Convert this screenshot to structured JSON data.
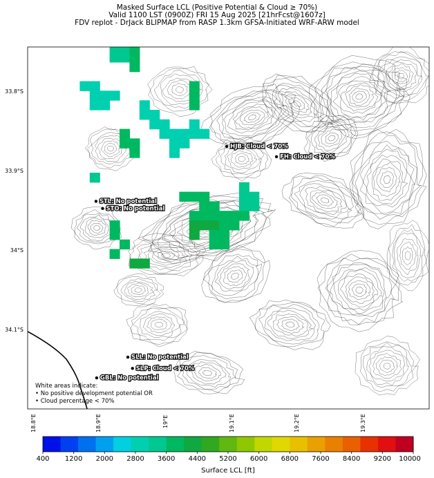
{
  "title": {
    "line1": "Masked Surface LCL (Positive Potential & Cloud ≥ 70%)",
    "line2": "Valid 1100 LST (0900Z) FRI 15 Aug 2025 [21hrFcst@1607z]",
    "line3": "FDV replot - DrJack BLIPMAP from RASP 1.3km GFSA-Initiated WRF-ARW model"
  },
  "lat_labels": [
    "33.8°S",
    "33.9°S",
    "34°S",
    "34.1°S"
  ],
  "lon_labels": [
    "18.8°E",
    "18.9°E",
    "19°E",
    "19.1°E",
    "19.2°E",
    "19.3°E"
  ],
  "stations": [
    {
      "code": "HJB",
      "label": "HJB: Cloud < 70%",
      "lon": 19.08,
      "lat": -33.87
    },
    {
      "code": "FH",
      "label": "FH: Cloud < 70%",
      "lon": 19.155,
      "lat": -33.883
    },
    {
      "code": "STL",
      "label": "STL: No potential",
      "lon": 18.883,
      "lat": -33.939
    },
    {
      "code": "STO",
      "label": "STO: No potential",
      "lon": 18.893,
      "lat": -33.948
    },
    {
      "code": "SLL",
      "label": "SLL: No potential",
      "lon": 18.931,
      "lat": -34.135
    },
    {
      "code": "SLP",
      "label": "SLP: Cloud < 70%",
      "lon": 18.938,
      "lat": -34.149
    },
    {
      "code": "GBL",
      "label": "GBL: No potential",
      "lon": 18.884,
      "lat": -34.161
    }
  ],
  "note": {
    "line1": "White areas indicate:",
    "line2": "• No positive development potential OR",
    "line3": "• Cloud percentage < 70%"
  },
  "colorbar": {
    "title": "Surface LCL [ft]",
    "ticks": [
      "400",
      "1200",
      "2000",
      "2800",
      "3600",
      "4400",
      "5200",
      "6000",
      "6800",
      "7600",
      "8400",
      "9200",
      "10000"
    ],
    "colors": [
      "#0010e8",
      "#0040f0",
      "#0070f0",
      "#00a0f0",
      "#00d0e0",
      "#00d0b0",
      "#00c890",
      "#00b860",
      "#10a840",
      "#30a820",
      "#60b810",
      "#90c800",
      "#c0d800",
      "#e0d800",
      "#e8c000",
      "#eaa000",
      "#ea8000",
      "#ea6000",
      "#e83000",
      "#e01010",
      "#c00020"
    ]
  },
  "lcl_cells": [
    {
      "lon": 18.911,
      "lat": -33.746,
      "lcl": 3200
    },
    {
      "lon": 18.926,
      "lat": -33.746,
      "lcl": 3200
    },
    {
      "lon": 18.941,
      "lat": -33.746,
      "lcl": 3600
    },
    {
      "lon": 18.911,
      "lat": -33.758,
      "lcl": 3200
    },
    {
      "lon": 18.926,
      "lat": -33.758,
      "lcl": 3200
    },
    {
      "lon": 18.941,
      "lat": -33.758,
      "lcl": 3600
    },
    {
      "lon": 18.941,
      "lat": -33.77,
      "lcl": 3600
    },
    {
      "lon": 18.866,
      "lat": -33.794,
      "lcl": 3000
    },
    {
      "lon": 18.881,
      "lat": -33.794,
      "lcl": 3000
    },
    {
      "lon": 18.881,
      "lat": -33.806,
      "lcl": 3000
    },
    {
      "lon": 18.896,
      "lat": -33.806,
      "lcl": 3000
    },
    {
      "lon": 18.881,
      "lat": -33.818,
      "lcl": 3000
    },
    {
      "lon": 18.896,
      "lat": -33.818,
      "lcl": 3000
    },
    {
      "lon": 18.911,
      "lat": -33.806,
      "lcl": 3000
    },
    {
      "lon": 18.956,
      "lat": -33.818,
      "lcl": 3000
    },
    {
      "lon": 18.956,
      "lat": -33.83,
      "lcl": 3000
    },
    {
      "lon": 18.971,
      "lat": -33.83,
      "lcl": 3000
    },
    {
      "lon": 18.971,
      "lat": -33.842,
      "lcl": 3000
    },
    {
      "lon": 18.986,
      "lat": -33.842,
      "lcl": 3000
    },
    {
      "lon": 18.986,
      "lat": -33.854,
      "lcl": 2800
    },
    {
      "lon": 19.001,
      "lat": -33.854,
      "lcl": 2800
    },
    {
      "lon": 19.001,
      "lat": -33.866,
      "lcl": 2800
    },
    {
      "lon": 19.016,
      "lat": -33.854,
      "lcl": 2800
    },
    {
      "lon": 19.016,
      "lat": -33.866,
      "lcl": 2800
    },
    {
      "lon": 19.001,
      "lat": -33.878,
      "lcl": 2800
    },
    {
      "lon": 18.926,
      "lat": -33.854,
      "lcl": 4000
    },
    {
      "lon": 18.926,
      "lat": -33.866,
      "lcl": 4000
    },
    {
      "lon": 18.941,
      "lat": -33.866,
      "lcl": 3800
    },
    {
      "lon": 18.941,
      "lat": -33.878,
      "lcl": 3800
    },
    {
      "lon": 19.031,
      "lat": -33.794,
      "lcl": 3800
    },
    {
      "lon": 19.031,
      "lat": -33.806,
      "lcl": 3800
    },
    {
      "lon": 19.031,
      "lat": -33.818,
      "lcl": 3800
    },
    {
      "lon": 19.031,
      "lat": -33.842,
      "lcl": 3000
    },
    {
      "lon": 19.031,
      "lat": -33.854,
      "lcl": 3000
    },
    {
      "lon": 19.046,
      "lat": -33.854,
      "lcl": 3000
    },
    {
      "lon": 18.881,
      "lat": -33.909,
      "lcl": 3200
    },
    {
      "lon": 19.016,
      "lat": -33.933,
      "lcl": 3600
    },
    {
      "lon": 19.031,
      "lat": -33.933,
      "lcl": 3600
    },
    {
      "lon": 19.046,
      "lat": -33.933,
      "lcl": 3600
    },
    {
      "lon": 19.046,
      "lat": -33.945,
      "lcl": 3800
    },
    {
      "lon": 19.061,
      "lat": -33.945,
      "lcl": 3800
    },
    {
      "lon": 19.031,
      "lat": -33.957,
      "lcl": 4000
    },
    {
      "lon": 19.046,
      "lat": -33.957,
      "lcl": 4000
    },
    {
      "lon": 19.061,
      "lat": -33.957,
      "lcl": 4000
    },
    {
      "lon": 19.076,
      "lat": -33.957,
      "lcl": 3800
    },
    {
      "lon": 19.091,
      "lat": -33.957,
      "lcl": 3800
    },
    {
      "lon": 19.031,
      "lat": -33.969,
      "lcl": 4200
    },
    {
      "lon": 19.046,
      "lat": -33.969,
      "lcl": 4200
    },
    {
      "lon": 19.061,
      "lat": -33.969,
      "lcl": 4200
    },
    {
      "lon": 19.076,
      "lat": -33.969,
      "lcl": 4000
    },
    {
      "lon": 19.091,
      "lat": -33.969,
      "lcl": 3800
    },
    {
      "lon": 19.031,
      "lat": -33.981,
      "lcl": 4200
    },
    {
      "lon": 19.061,
      "lat": -33.981,
      "lcl": 4000
    },
    {
      "lon": 19.076,
      "lat": -33.981,
      "lcl": 4000
    },
    {
      "lon": 19.061,
      "lat": -33.993,
      "lcl": 4000
    },
    {
      "lon": 19.076,
      "lat": -33.993,
      "lcl": 4000
    },
    {
      "lon": 19.106,
      "lat": -33.921,
      "lcl": 3200
    },
    {
      "lon": 19.106,
      "lat": -33.933,
      "lcl": 3200
    },
    {
      "lon": 19.121,
      "lat": -33.933,
      "lcl": 3200
    },
    {
      "lon": 19.106,
      "lat": -33.945,
      "lcl": 3200
    },
    {
      "lon": 19.121,
      "lat": -33.945,
      "lcl": 3200
    },
    {
      "lon": 19.106,
      "lat": -33.957,
      "lcl": 3600
    },
    {
      "lon": 18.911,
      "lat": -33.969,
      "lcl": 4000
    },
    {
      "lon": 18.911,
      "lat": -33.981,
      "lcl": 4000
    },
    {
      "lon": 18.926,
      "lat": -33.993,
      "lcl": 4000
    },
    {
      "lon": 18.911,
      "lat": -34.005,
      "lcl": 4000
    },
    {
      "lon": 18.941,
      "lat": -34.017,
      "lcl": 4200
    },
    {
      "lon": 18.956,
      "lat": -34.017,
      "lcl": 4200
    }
  ]
}
